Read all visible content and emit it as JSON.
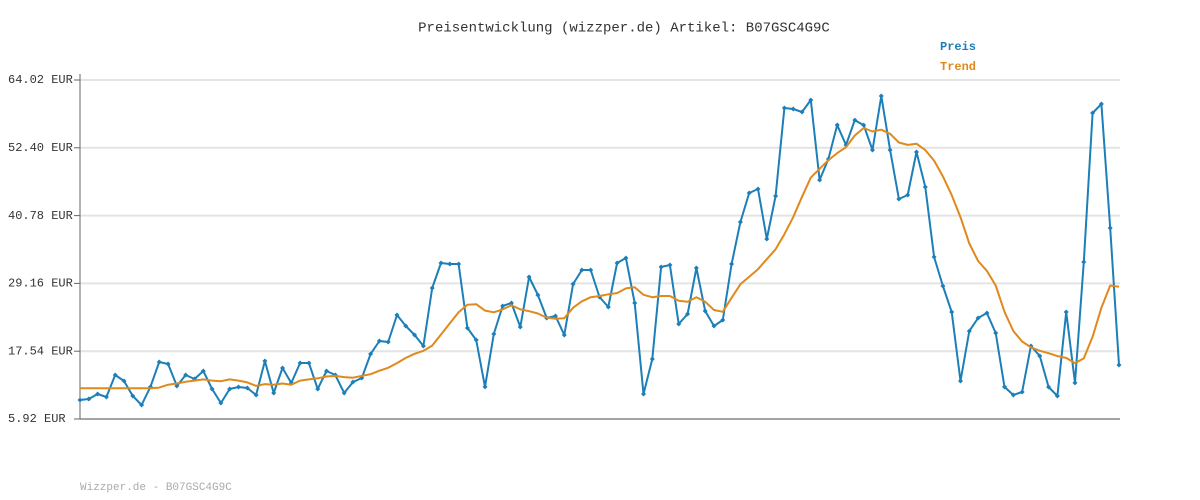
{
  "chart_data": {
    "type": "line",
    "title": "Preisentwicklung (wizzper.de) Artikel: B07GSC4G9C",
    "footer": "Wizzper.de - B07GSC4G9C",
    "ylim": [
      5.92,
      64.02
    ],
    "yticks": [
      {
        "value": 5.92,
        "label": "5.92 EUR"
      },
      {
        "value": 17.54,
        "label": "17.54 EUR"
      },
      {
        "value": 29.16,
        "label": "29.16 EUR"
      },
      {
        "value": 40.78,
        "label": "40.78 EUR"
      },
      {
        "value": 52.4,
        "label": "52.40 EUR"
      },
      {
        "value": 64.02,
        "label": "64.02 EUR"
      }
    ],
    "grid": true,
    "legend": "top-right",
    "series": [
      {
        "name": "Preis",
        "color": "#1c7fb8",
        "markers": true,
        "values": [
          9.18,
          9.35,
          10.21,
          9.69,
          13.46,
          12.43,
          9.86,
          8.32,
          11.43,
          15.69,
          15.35,
          11.58,
          13.46,
          12.78,
          14.15,
          11.06,
          8.66,
          11.06,
          11.4,
          11.23,
          10.03,
          15.86,
          10.38,
          14.66,
          12.09,
          15.52,
          15.52,
          11.06,
          14.15,
          13.46,
          10.38,
          12.26,
          12.95,
          17.06,
          19.29,
          19.12,
          23.75,
          21.86,
          20.32,
          18.43,
          28.37,
          32.66,
          32.49,
          32.49,
          21.52,
          19.46,
          11.43,
          20.49,
          25.29,
          25.8,
          21.69,
          30.26,
          27.17,
          23.23,
          23.57,
          20.32,
          29.06,
          31.46,
          31.46,
          26.83,
          25.12,
          32.66,
          33.51,
          25.8,
          10.21,
          16.2,
          31.97,
          32.31,
          22.2,
          23.91,
          31.8,
          24.43,
          21.86,
          22.89,
          32.49,
          39.68,
          44.65,
          45.34,
          36.77,
          44.14,
          59.22,
          59.05,
          58.54,
          60.59,
          46.88,
          50.48,
          56.31,
          52.88,
          57.14,
          56.28,
          52.02,
          61.28,
          52.02,
          43.63,
          44.31,
          51.68,
          45.68,
          33.68,
          28.71,
          24.26,
          12.43,
          20.99,
          23.23,
          24.09,
          20.66,
          11.43,
          10.03,
          10.55,
          18.43,
          16.72,
          11.4,
          9.86,
          24.26,
          12.12,
          32.83,
          58.37,
          59.91,
          38.66,
          15.18
        ]
      },
      {
        "name": "Trend",
        "color": "#e0891c",
        "markers": false,
        "values": [
          11.2,
          11.2,
          11.2,
          11.2,
          11.2,
          11.2,
          11.2,
          11.2,
          11.2,
          11.3,
          11.8,
          12.0,
          12.3,
          12.5,
          12.7,
          12.5,
          12.4,
          12.7,
          12.5,
          12.2,
          11.6,
          11.9,
          11.8,
          12.0,
          11.8,
          12.5,
          12.7,
          12.9,
          13.2,
          13.3,
          13.1,
          13.0,
          13.3,
          13.6,
          14.2,
          14.7,
          15.5,
          16.4,
          17.1,
          17.6,
          18.5,
          20.4,
          22.3,
          24.2,
          25.5,
          25.6,
          24.5,
          24.2,
          24.7,
          25.4,
          24.7,
          24.4,
          24.0,
          23.3,
          23.1,
          23.2,
          25.0,
          26.1,
          26.8,
          27.0,
          27.3,
          27.5,
          28.3,
          28.5,
          27.2,
          26.8,
          27.0,
          27.0,
          26.2,
          26.0,
          26.8,
          26.0,
          24.6,
          24.3,
          26.7,
          29.0,
          30.3,
          31.6,
          33.3,
          35.0,
          37.6,
          40.5,
          44.0,
          47.3,
          48.8,
          50.3,
          51.5,
          52.5,
          54.5,
          55.8,
          55.2,
          55.5,
          54.8,
          53.3,
          52.9,
          53.1,
          52.0,
          50.2,
          47.5,
          44.3,
          40.5,
          36.0,
          33.0,
          31.3,
          28.8,
          24.3,
          21.0,
          19.2,
          18.2,
          17.6,
          17.2,
          16.7,
          16.4,
          15.5,
          16.3,
          20.0,
          25.0,
          28.8,
          28.6
        ]
      }
    ]
  }
}
